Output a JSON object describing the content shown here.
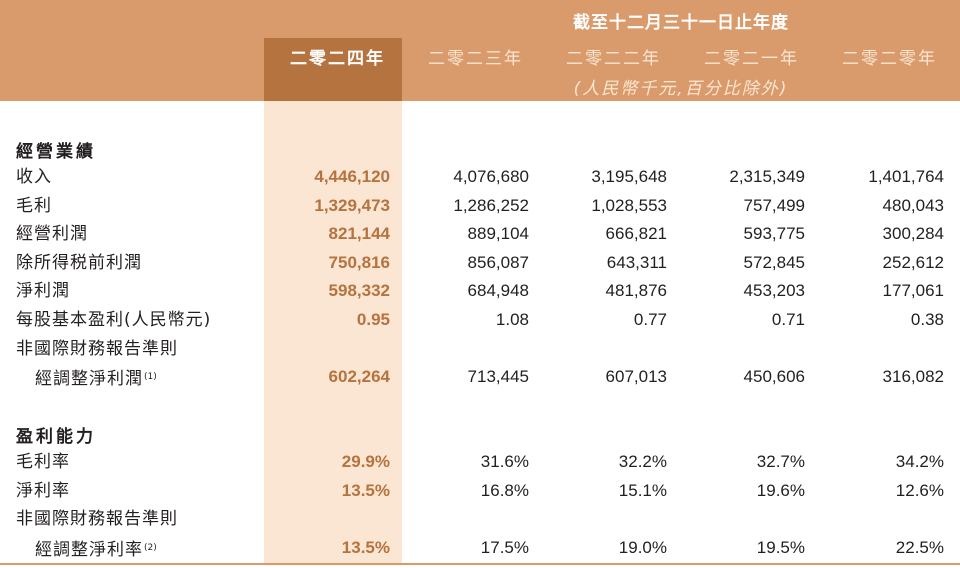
{
  "header": {
    "period": "截至十二月三十一日止年度",
    "years": [
      "二零二四年",
      "二零二三年",
      "二零二二年",
      "二零二一年",
      "二零二零年"
    ],
    "unit": "(人民幣千元,百分比除外)"
  },
  "sections": {
    "operating": {
      "title": "經營業績",
      "rows": [
        {
          "label": "收入",
          "values": [
            "4,446,120",
            "4,076,680",
            "3,195,648",
            "2,315,349",
            "1,401,764"
          ]
        },
        {
          "label": "毛利",
          "values": [
            "1,329,473",
            "1,286,252",
            "1,028,553",
            "757,499",
            "480,043"
          ]
        },
        {
          "label": "經營利潤",
          "values": [
            "821,144",
            "889,104",
            "666,821",
            "593,775",
            "300,284"
          ]
        },
        {
          "label": "除所得税前利潤",
          "values": [
            "750,816",
            "856,087",
            "643,311",
            "572,845",
            "252,612"
          ]
        },
        {
          "label": "淨利潤",
          "values": [
            "598,332",
            "684,948",
            "481,876",
            "453,203",
            "177,061"
          ]
        },
        {
          "label": "每股基本盈利(人民幣元)",
          "values": [
            "0.95",
            "1.08",
            "0.77",
            "0.71",
            "0.38"
          ]
        }
      ],
      "nongaap": {
        "label_line1": "非國際財務報告準則",
        "label_line2": "經調整淨利潤",
        "note": "(1)",
        "values": [
          "602,264",
          "713,445",
          "607,013",
          "450,606",
          "316,082"
        ]
      }
    },
    "profitability": {
      "title": "盈利能力",
      "rows": [
        {
          "label": "毛利率",
          "values": [
            "29.9%",
            "31.6%",
            "32.2%",
            "32.7%",
            "34.2%"
          ]
        },
        {
          "label": "淨利率",
          "values": [
            "13.5%",
            "16.8%",
            "15.1%",
            "19.6%",
            "12.6%"
          ]
        }
      ],
      "nongaap": {
        "label_line1": "非國際財務報告準則",
        "label_line2": "經調整淨利率",
        "note": "(2)",
        "values": [
          "13.5%",
          "17.5%",
          "19.0%",
          "19.5%",
          "22.5%"
        ]
      }
    }
  }
}
